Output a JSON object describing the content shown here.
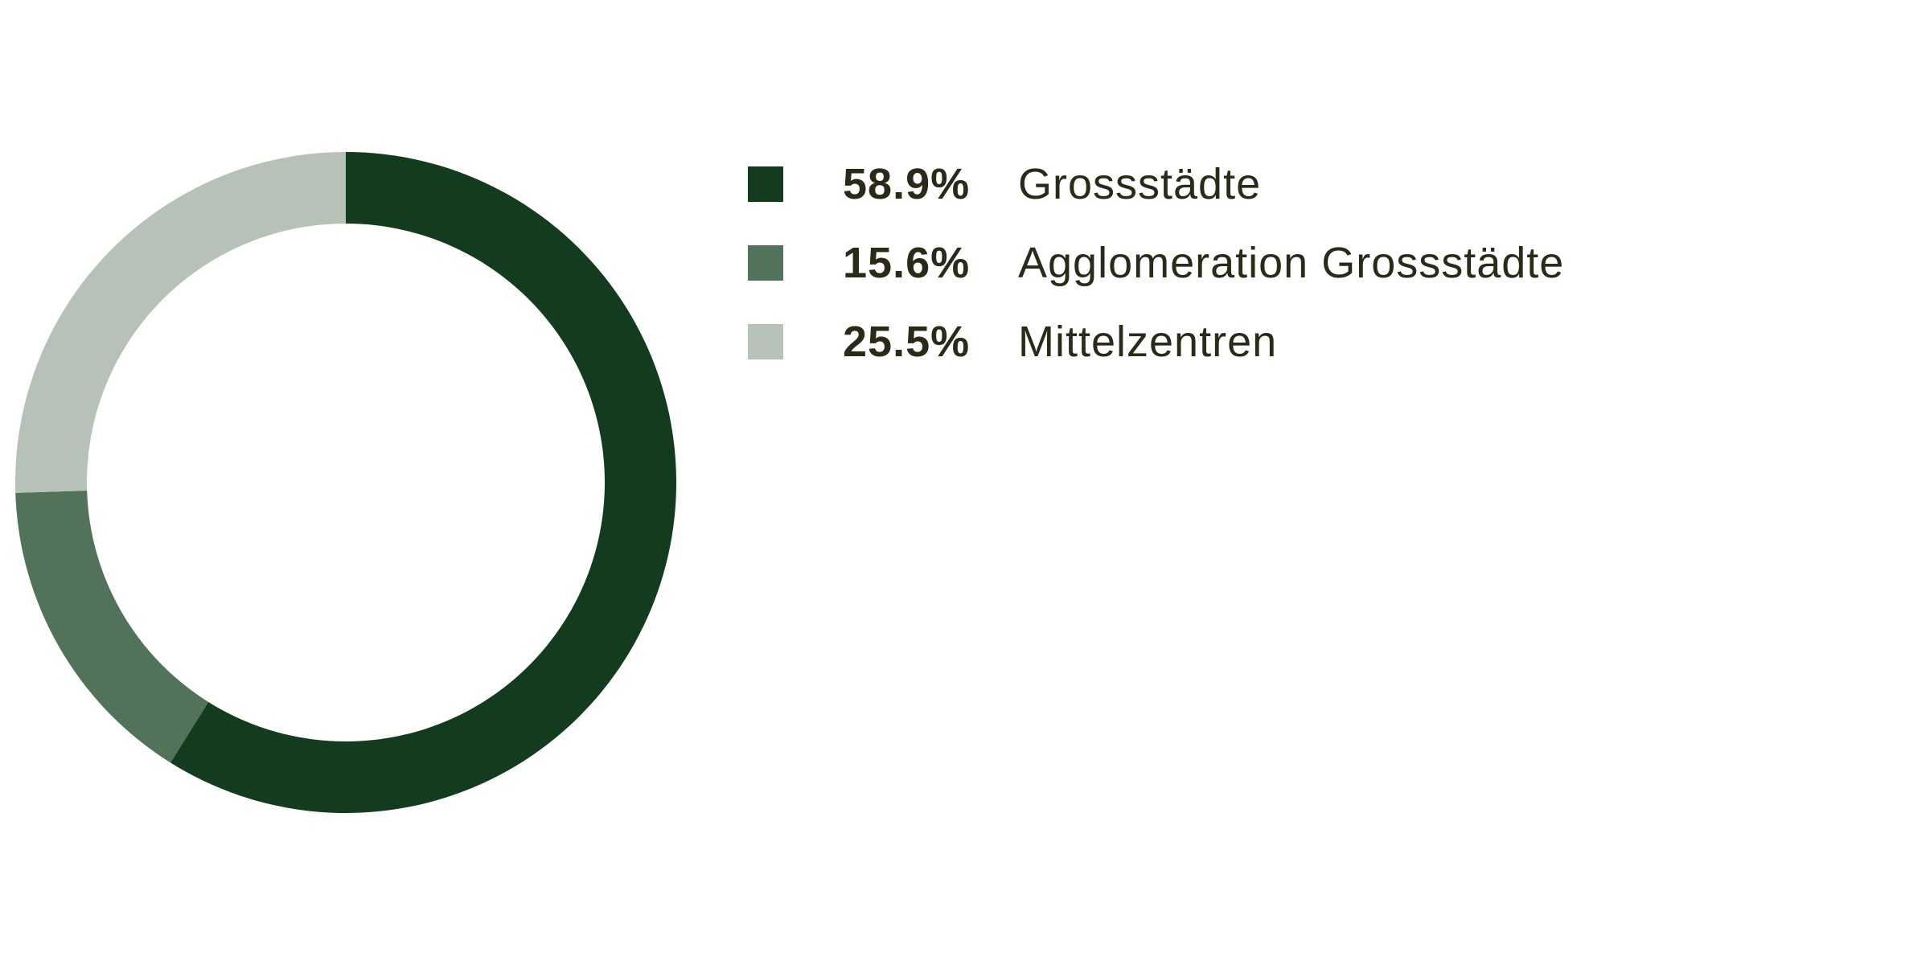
{
  "chart_data": {
    "type": "pie",
    "variant": "donut",
    "title": "",
    "legend_position": "right",
    "slices": [
      {
        "label": "Grossstädte",
        "value": 58.9,
        "value_label": "58.9%",
        "color": "#133b1d"
      },
      {
        "label": "Agglomeration Grossstädte",
        "value": 15.6,
        "value_label": "15.6%",
        "color": "#53725a"
      },
      {
        "label": "Mittelzentren",
        "value": 25.5,
        "value_label": "25.5%",
        "color": "#b6c2b7"
      }
    ]
  }
}
